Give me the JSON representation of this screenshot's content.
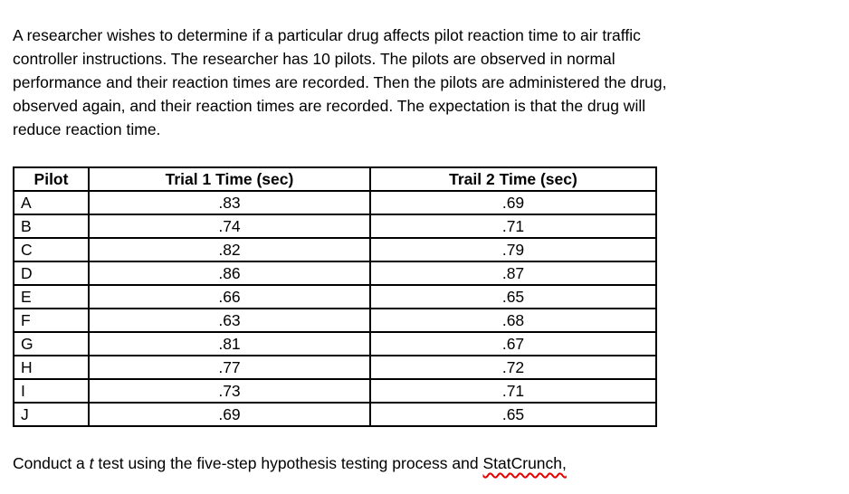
{
  "paragraph": {
    "lines": [
      "A researcher wishes to determine if a particular drug affects pilot reaction time to air traffic",
      "controller instructions. The researcher has 10 pilots. The pilots are observed in normal",
      "performance and their reaction times are recorded. Then the pilots are administered the drug,",
      "observed again, and their reaction times are recorded. The expectation is that the drug will",
      "reduce reaction time."
    ]
  },
  "table": {
    "headers": [
      "Pilot",
      "Trial 1 Time (sec)",
      "Trail 2 Time (sec)"
    ],
    "rows": [
      [
        "A",
        ".83",
        ".69"
      ],
      [
        "B",
        ".74",
        ".71"
      ],
      [
        "C",
        ".82",
        ".79"
      ],
      [
        "D",
        ".86",
        ".87"
      ],
      [
        "E",
        ".66",
        ".65"
      ],
      [
        "F",
        ".63",
        ".68"
      ],
      [
        "G",
        ".81",
        ".67"
      ],
      [
        "H",
        ".77",
        ".72"
      ],
      [
        "I",
        ".73",
        ".71"
      ],
      [
        "J",
        ".69",
        ".65"
      ]
    ]
  },
  "footer": {
    "prefix": "Conduct a ",
    "italic_term": "t",
    "middle": " test using the five-step hypothesis testing process and ",
    "misspelled_word": "StatCrunch,"
  },
  "colors": {
    "text": "#000000",
    "background": "#ffffff",
    "table_border": "#000000",
    "spellcheck_underline": "#e60000"
  }
}
